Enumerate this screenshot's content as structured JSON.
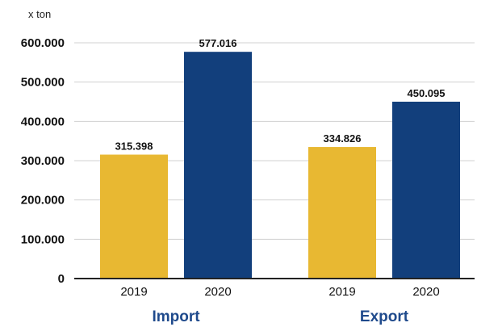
{
  "chart_data": {
    "type": "bar",
    "unit_label": "x ton",
    "ylim": [
      0,
      600000
    ],
    "y_ticks": [
      {
        "value": 0,
        "label": "0"
      },
      {
        "value": 100000,
        "label": "100.000"
      },
      {
        "value": 200000,
        "label": "200.000"
      },
      {
        "value": 300000,
        "label": "300.000"
      },
      {
        "value": 400000,
        "label": "400.000"
      },
      {
        "value": 500000,
        "label": "500.000"
      },
      {
        "value": 600000,
        "label": "600.000"
      }
    ],
    "grid": true,
    "groups": [
      {
        "name": "Import",
        "bars": [
          {
            "category": "2019",
            "value": 315398,
            "label": "315.398",
            "color": "#E8B832"
          },
          {
            "category": "2020",
            "value": 577016,
            "label": "577.016",
            "color": "#123F7C"
          }
        ]
      },
      {
        "name": "Export",
        "bars": [
          {
            "category": "2019",
            "value": 334826,
            "label": "334.826",
            "color": "#E8B832"
          },
          {
            "category": "2020",
            "value": 450095,
            "label": "450.095",
            "color": "#123F7C"
          }
        ]
      }
    ],
    "group_label_color": "#1F4A8C"
  }
}
